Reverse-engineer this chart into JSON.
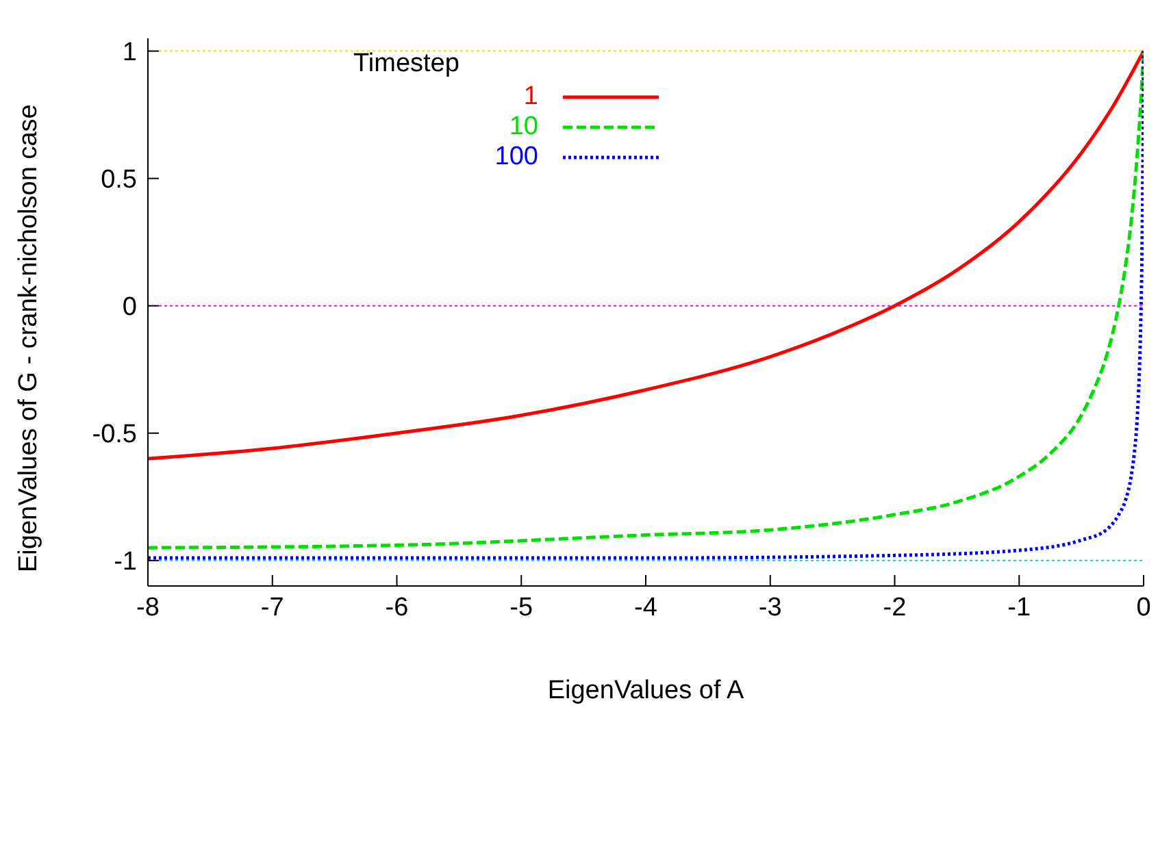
{
  "chart_data": {
    "type": "line",
    "xlabel": "EigenValues of A",
    "ylabel": "EigenValues of G - crank-nicholson case",
    "legend_title": "Timestep",
    "legend": "top left",
    "marker": "none",
    "xlim": [
      -8,
      0
    ],
    "xticks": [
      -8,
      -7,
      -6,
      -5,
      -4,
      -3,
      -2,
      -1,
      0
    ],
    "ylim": [
      -1.1,
      1.05
    ],
    "yticks": [
      -1,
      -0.5,
      0,
      0.5,
      1
    ],
    "ref_lines": [
      {
        "axis": "y",
        "value": 1,
        "color": "#e8e800",
        "line_style": "dotted"
      },
      {
        "axis": "y",
        "value": 0,
        "color": "#ff00ff",
        "line_style": "dotted"
      },
      {
        "axis": "y",
        "value": -1,
        "color": "#00d8d8",
        "line_style": "dotted"
      }
    ],
    "series": [
      {
        "name": "1",
        "color": "#ff0000",
        "line_style": "solid",
        "x": [
          -8,
          -7,
          -6,
          -5,
          -4,
          -3,
          -2.5,
          -2,
          -1.5,
          -1,
          -0.5,
          -0.25,
          0
        ],
        "values": [
          -0.6,
          -0.56,
          -0.5,
          -0.43,
          -0.33,
          -0.2,
          -0.11,
          0,
          0.14,
          0.33,
          0.6,
          0.78,
          1
        ]
      },
      {
        "name": "10",
        "color": "#00e000",
        "line_style": "dashed",
        "x": [
          -8,
          -6,
          -4,
          -3,
          -2,
          -1.5,
          -1,
          -0.75,
          -0.5,
          -0.4,
          -0.3,
          -0.2,
          -0.15,
          -0.1,
          -0.05,
          -0.025,
          0
        ],
        "values": [
          -0.95,
          -0.94,
          -0.9,
          -0.88,
          -0.82,
          -0.77,
          -0.67,
          -0.58,
          -0.43,
          -0.33,
          -0.2,
          0,
          0.14,
          0.33,
          0.6,
          0.78,
          1
        ]
      },
      {
        "name": "100",
        "color": "#0000ff",
        "line_style": "dotted",
        "x": [
          -8,
          -4,
          -2,
          -1,
          -0.5,
          -0.3,
          -0.2,
          -0.15,
          -0.1,
          -0.075,
          -0.05,
          -0.04,
          -0.03,
          -0.02,
          -0.015,
          -0.01,
          -0.005,
          0
        ],
        "values": [
          -0.99,
          -0.99,
          -0.98,
          -0.96,
          -0.92,
          -0.88,
          -0.82,
          -0.77,
          -0.67,
          -0.58,
          -0.43,
          -0.33,
          -0.2,
          0,
          0.14,
          0.33,
          0.6,
          1
        ]
      }
    ]
  }
}
